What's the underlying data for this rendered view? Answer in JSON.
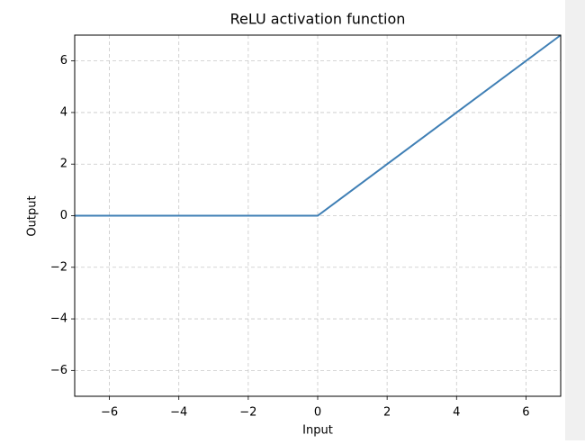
{
  "chart_data": {
    "type": "line",
    "title": "ReLU activation function",
    "xlabel": "Input",
    "ylabel": "Output",
    "x": [
      -7,
      0,
      7
    ],
    "values": [
      0,
      0,
      7
    ],
    "color": "#3f7fb5",
    "xlim": [
      -7,
      7
    ],
    "ylim": [
      -7,
      7
    ],
    "xticks": [
      {
        "value": -6,
        "label": "−6"
      },
      {
        "value": -4,
        "label": "−4"
      },
      {
        "value": -2,
        "label": "−2"
      },
      0,
      2,
      4,
      6
    ],
    "yticks": [
      {
        "value": -6,
        "label": "−6"
      },
      {
        "value": -4,
        "label": "−4"
      },
      {
        "value": -2,
        "label": "−2"
      },
      0,
      2,
      4,
      6
    ],
    "grid": true
  }
}
